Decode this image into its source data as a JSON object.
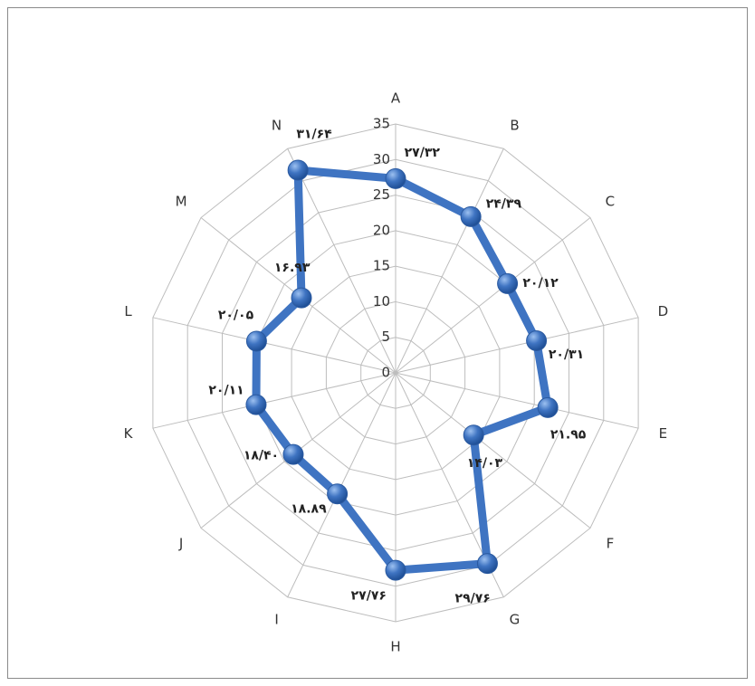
{
  "chart_data": {
    "type": "radar",
    "categories": [
      "A",
      "B",
      "C",
      "D",
      "E",
      "F",
      "G",
      "H",
      "I",
      "J",
      "K",
      "L",
      "M",
      "N"
    ],
    "values": [
      27.32,
      24.39,
      20.12,
      20.31,
      21.95,
      14.03,
      29.76,
      27.76,
      18.89,
      18.4,
      20.11,
      20.05,
      16.93,
      31.64
    ],
    "value_labels": [
      "۲۷/۳۲",
      "۲۴/۳۹",
      "۲۰/۱۲",
      "۲۰/۳۱",
      "۲۱.۹۵",
      "۱۴/۰۳",
      "۲۹/۷۶",
      "۲۷/۷۶",
      "۱۸.۸۹",
      "۱۸/۴۰",
      "۲۰/۱۱",
      "۲۰/۰۵",
      "۱۶.۹۳",
      "۳۱/۶۴"
    ],
    "color": "#3f74c2",
    "ylim": [
      0,
      35
    ],
    "yticks": [
      0,
      5,
      10,
      15,
      20,
      25,
      30,
      35
    ],
    "grid": true
  }
}
